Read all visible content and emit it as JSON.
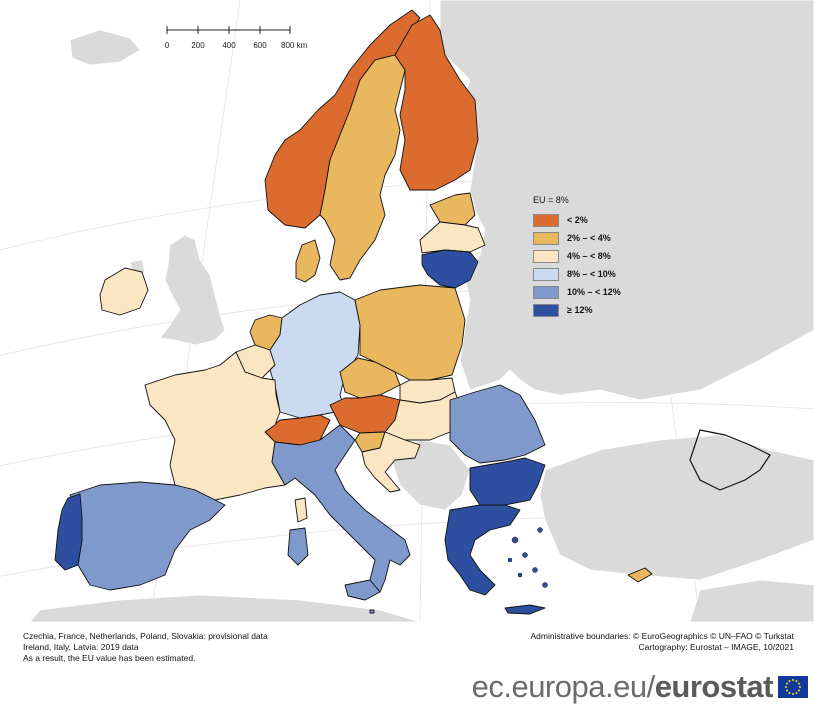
{
  "map": {
    "scale_bar": {
      "ticks": [
        "0",
        "200",
        "400",
        "600",
        "800 km"
      ]
    }
  },
  "legend": {
    "title": "EU = 8%",
    "items": [
      {
        "label": "< 2%",
        "color": "#dc6b2f"
      },
      {
        "label": "2% – < 4%",
        "color": "#e9b75e"
      },
      {
        "label": "4% – < 8%",
        "color": "#fbe6c4"
      },
      {
        "label": "8% – < 10%",
        "color": "#cbdaf0"
      },
      {
        "label": "10% – < 12%",
        "color": "#8099cc"
      },
      {
        "label": "≥ 12%",
        "color": "#2e4fa0"
      }
    ]
  },
  "colors": {
    "non_eu_land": "#dadada",
    "non_eu_border": "#ffffff",
    "sea": "#ffffff",
    "graticule": "#e3e3e3"
  },
  "countries": {
    "norway": "< 2%",
    "sweden": "2% – < 4%",
    "finland": "< 2%",
    "estonia": "2% – < 4%",
    "latvia": "4% – < 8%",
    "lithuania": "≥ 12%",
    "denmark": "2% – < 4%",
    "ireland": "4% – < 8%",
    "netherlands": "2% – < 4%",
    "belgium": "4% – < 8%",
    "germany": "8% – < 10%",
    "poland": "2% – < 4%",
    "czechia": "2% – < 4%",
    "slovakia": "4% – < 8%",
    "austria": "< 2%",
    "switzerland": "< 2%",
    "france": "4% – < 8%",
    "slovenia": "2% – < 4%",
    "hungary": "4% – < 8%",
    "croatia": "4% – < 8%",
    "romania": "10% – < 12%",
    "bulgaria": "≥ 12%",
    "italy": "10% – < 12%",
    "spain": "10% – < 12%",
    "portugal": "≥ 12%",
    "greece": "≥ 12%",
    "cyprus": "2% – < 4%",
    "malta": "10% – < 12%"
  },
  "footer": {
    "notes": [
      "Czechia, France, Netherlands, Poland, Slovakia: provisional data",
      "Ireland, Italy, Latvia: 2019 data",
      "As a result, the EU value has been estimated."
    ],
    "credits": [
      "Administrative boundaries: © EuroGeographics © UN–FAO © Turkstat",
      "Cartography: Eurostat – IMAGE, 10/2021"
    ]
  },
  "brand": {
    "url": "ec.europa.eu/",
    "name": "eurostat"
  }
}
